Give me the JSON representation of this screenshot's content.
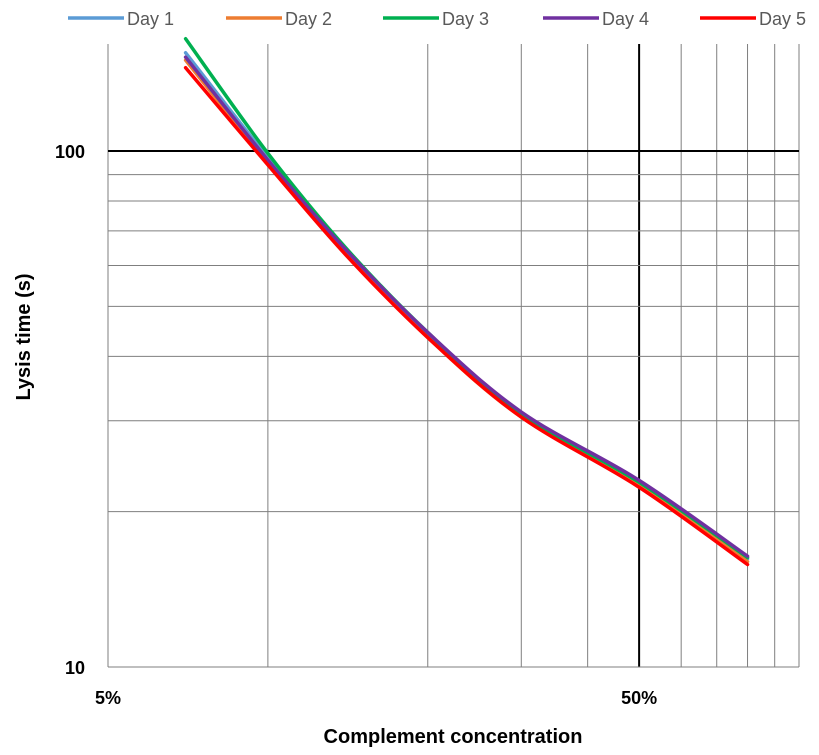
{
  "chart_data": {
    "type": "line",
    "title": "",
    "xlabel": "Complement concentration",
    "ylabel": "Lysis time (s)",
    "x_scale": "log",
    "y_scale": "log",
    "xlim": [
      0.05,
      1.0
    ],
    "ylim": [
      10,
      200
    ],
    "x_ticks": [
      {
        "value": 0.05,
        "label": "5%"
      },
      {
        "value": 0.5,
        "label": "50%"
      }
    ],
    "y_ticks": [
      {
        "value": 10,
        "label": "10"
      },
      {
        "value": 100,
        "label": "100"
      }
    ],
    "grid": true,
    "legend_position": "top",
    "x": [
      0.07,
      0.1,
      0.14,
      0.2,
      0.3,
      0.5,
      0.8
    ],
    "series": [
      {
        "name": "Day 1",
        "color": "#5b9bd5",
        "values": [
          155,
          97,
          64,
          44,
          31,
          22.8,
          16.2
        ]
      },
      {
        "name": "Day 2",
        "color": "#ed7d31",
        "values": [
          150,
          95,
          63.5,
          43.5,
          30.5,
          22.5,
          16.0
        ]
      },
      {
        "name": "Day 3",
        "color": "#00b050",
        "values": [
          165,
          99,
          65,
          44.5,
          31,
          22.8,
          16.3
        ]
      },
      {
        "name": "Day 4",
        "color": "#7030a0",
        "values": [
          152,
          96,
          64.5,
          44.5,
          31.2,
          23.0,
          16.4
        ]
      },
      {
        "name": "Day 5",
        "color": "#ff0000",
        "values": [
          145,
          94,
          63,
          43.5,
          30.5,
          22.3,
          15.8
        ]
      }
    ]
  }
}
